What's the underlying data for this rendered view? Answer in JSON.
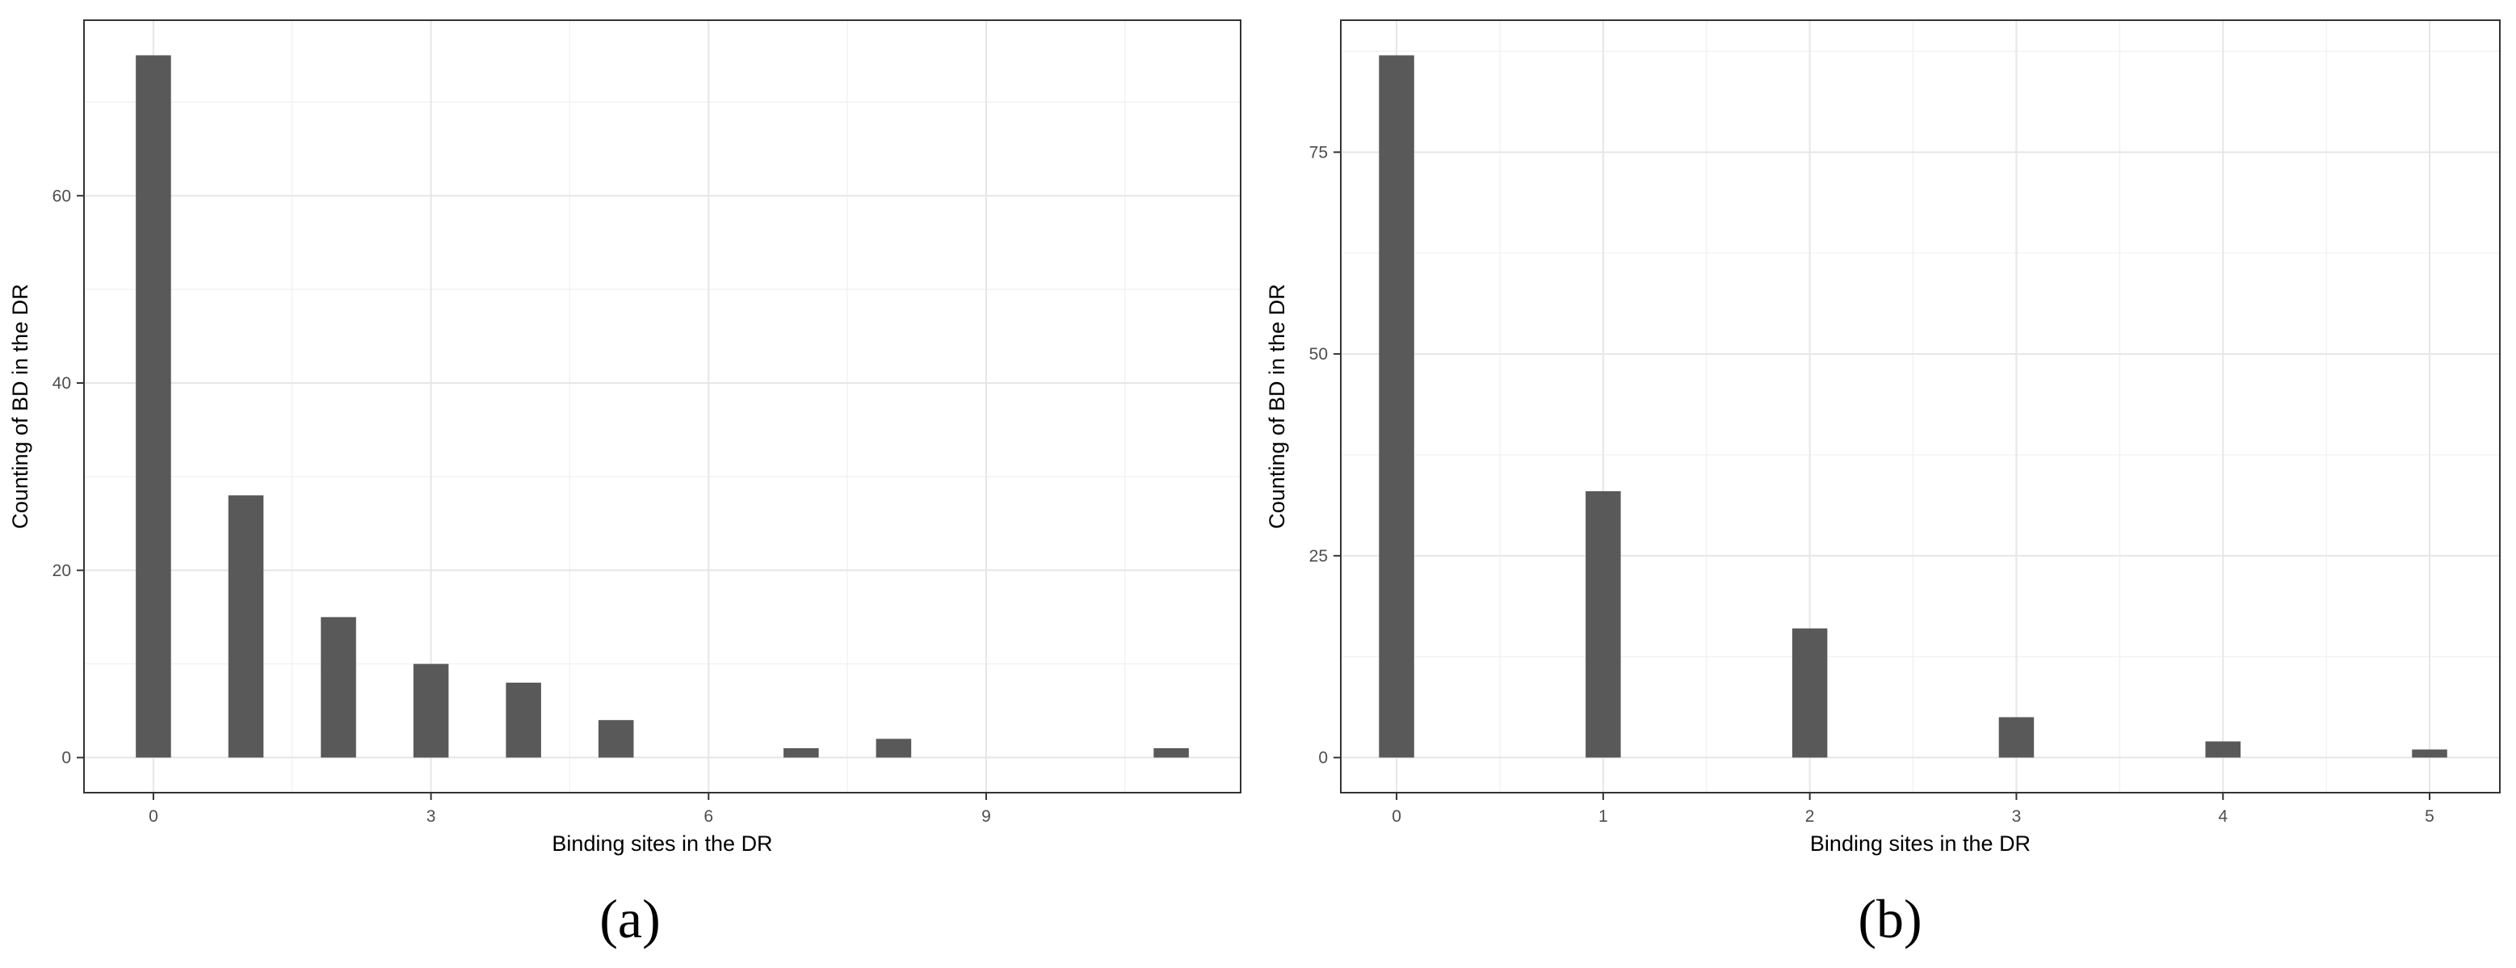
{
  "chart_data": [
    {
      "type": "bar",
      "panel_label": "(a)",
      "xlabel": "Binding sites in the DR",
      "ylabel": "Counting of BD in the DR",
      "x": [
        0,
        1,
        2,
        3,
        4,
        5,
        7,
        8,
        11
      ],
      "values": [
        75,
        28,
        15,
        10,
        8,
        4,
        1,
        2,
        1
      ],
      "xlim": [
        -0.75,
        11.75
      ],
      "ylim": [
        -3.75,
        78.75
      ],
      "xticks": [
        0,
        3,
        6,
        9
      ],
      "xtick_labels": [
        "0",
        "3",
        "6",
        "9"
      ],
      "yticks": [
        0,
        20,
        40,
        60
      ],
      "ytick_labels": [
        "0",
        "20",
        "40",
        "60"
      ],
      "bar_width": 0.38,
      "grid": true,
      "bar_color": "#595959"
    },
    {
      "type": "bar",
      "panel_label": "(b)",
      "xlabel": "Binding sites in the DR",
      "ylabel": "Counting of BD in the DR",
      "x": [
        0,
        1,
        2,
        3,
        4,
        5
      ],
      "values": [
        87,
        33,
        16,
        5,
        2,
        1
      ],
      "xlim": [
        -0.27,
        5.34
      ],
      "ylim": [
        -4.35,
        91.35
      ],
      "xticks": [
        0,
        1,
        2,
        3,
        4,
        5
      ],
      "xtick_labels": [
        "0",
        "1",
        "2",
        "3",
        "4",
        "5"
      ],
      "yticks": [
        0,
        25,
        50,
        75
      ],
      "ytick_labels": [
        "0",
        "25",
        "50",
        "75"
      ],
      "bar_width": 0.17,
      "grid": true,
      "bar_color": "#595959"
    }
  ]
}
